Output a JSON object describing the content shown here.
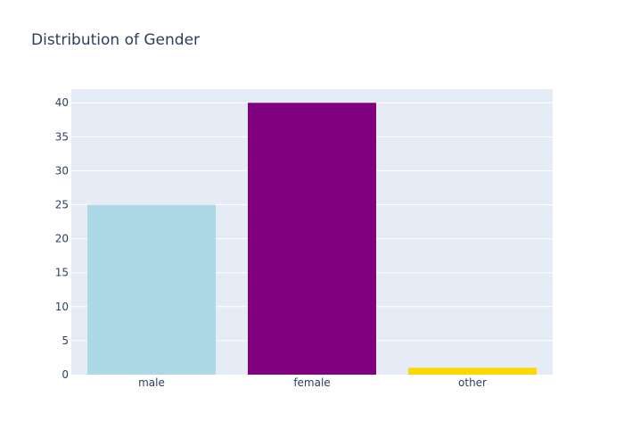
{
  "chart_data": {
    "type": "bar",
    "title": "Distribution of Gender",
    "xlabel": "",
    "ylabel": "",
    "categories": [
      "male",
      "female",
      "other"
    ],
    "values": [
      25,
      40,
      1
    ],
    "colors": [
      "#add8e6",
      "#800080",
      "#ffd700"
    ],
    "ylim": [
      0,
      42
    ],
    "yticks": [
      0,
      5,
      10,
      15,
      20,
      25,
      30,
      35,
      40
    ],
    "grid": true,
    "plot_background": "#e5ecf6",
    "gridline_color": "#ffffff",
    "text_color": "#2a3f5f"
  }
}
